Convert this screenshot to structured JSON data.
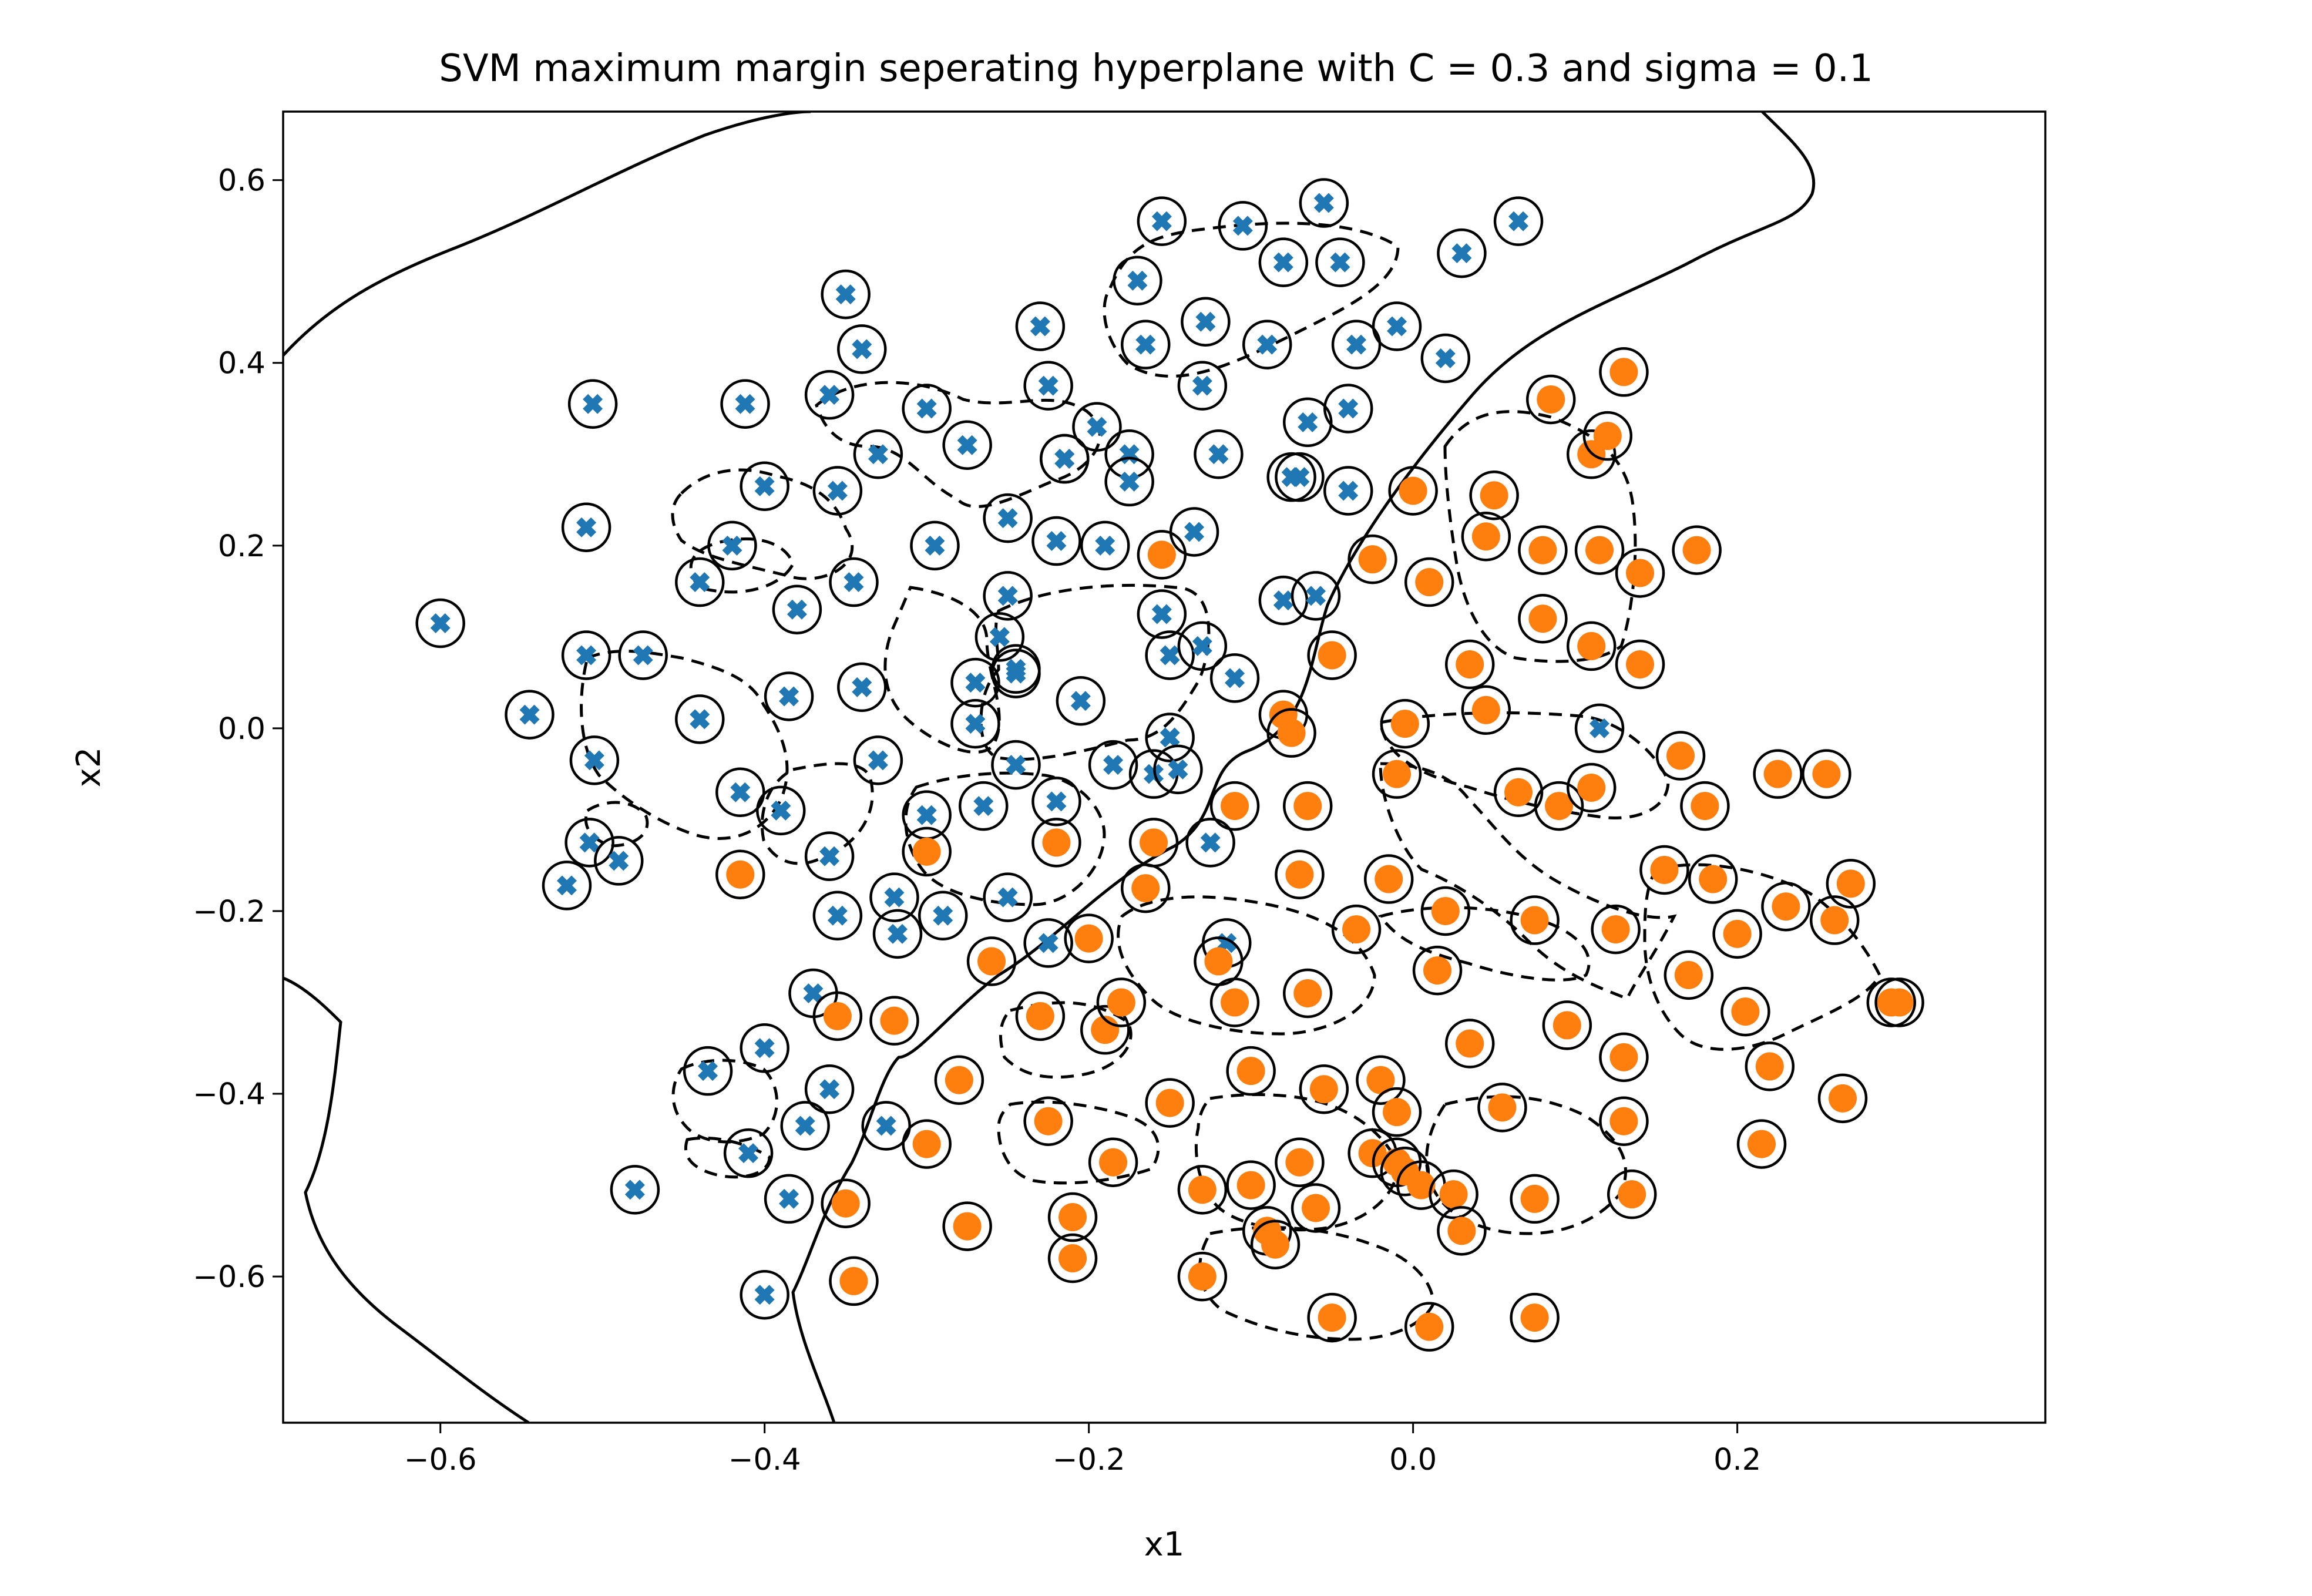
{
  "chart_data": {
    "type": "scatter",
    "title": "SVM maximum margin seperating hyperplane with C = 0.3 and sigma = 0.1",
    "xlabel": "x1",
    "ylabel": "x2",
    "xlim": [
      -0.697,
      0.39
    ],
    "ylim": [
      -0.76,
      0.675
    ],
    "xticks": [
      -0.6,
      -0.4,
      -0.2,
      0.0,
      0.2
    ],
    "xtick_labels": [
      "−0.6",
      "−0.4",
      "−0.2",
      "0.0",
      "0.2"
    ],
    "yticks": [
      -0.6,
      -0.4,
      -0.2,
      0.0,
      0.2,
      0.4,
      0.6
    ],
    "ytick_labels": [
      "−0.6",
      "−0.4",
      "−0.2",
      "0.0",
      "0.2",
      "0.4",
      "0.6"
    ],
    "grid": false,
    "legend": "none",
    "colors": {
      "class_x": "#1f77b4",
      "class_o": "#ff7f0e",
      "boundary": "#000000"
    },
    "series": [
      {
        "marker": "x",
        "color": "#1f77b4",
        "points": [
          [
            -0.6,
            0.115
          ],
          [
            -0.545,
            0.015
          ],
          [
            -0.522,
            -0.172
          ],
          [
            -0.51,
            0.08
          ],
          [
            -0.51,
            0.22
          ],
          [
            -0.506,
            0.355
          ],
          [
            -0.508,
            -0.125
          ],
          [
            -0.505,
            -0.035
          ],
          [
            -0.49,
            -0.145
          ],
          [
            -0.48,
            -0.505
          ],
          [
            -0.475,
            0.08
          ],
          [
            -0.44,
            0.01
          ],
          [
            -0.44,
            0.16
          ],
          [
            -0.435,
            -0.375
          ],
          [
            -0.42,
            0.2
          ],
          [
            -0.415,
            -0.07
          ],
          [
            -0.412,
            0.355
          ],
          [
            -0.41,
            -0.465
          ],
          [
            -0.4,
            0.265
          ],
          [
            -0.4,
            -0.35
          ],
          [
            -0.4,
            -0.62
          ],
          [
            -0.39,
            -0.09
          ],
          [
            -0.385,
            -0.515
          ],
          [
            -0.385,
            0.035
          ],
          [
            -0.38,
            0.13
          ],
          [
            -0.375,
            -0.435
          ],
          [
            -0.37,
            -0.29
          ],
          [
            -0.36,
            0.365
          ],
          [
            -0.36,
            -0.14
          ],
          [
            -0.36,
            -0.395
          ],
          [
            -0.355,
            0.26
          ],
          [
            -0.355,
            -0.205
          ],
          [
            -0.35,
            0.475
          ],
          [
            -0.345,
            0.16
          ],
          [
            -0.34,
            0.045
          ],
          [
            -0.34,
            0.415
          ],
          [
            -0.33,
            0.3
          ],
          [
            -0.33,
            -0.035
          ],
          [
            -0.325,
            -0.435
          ],
          [
            -0.32,
            -0.185
          ],
          [
            -0.318,
            -0.225
          ],
          [
            -0.3,
            0.35
          ],
          [
            -0.3,
            -0.095
          ],
          [
            -0.295,
            0.2
          ],
          [
            -0.29,
            -0.205
          ],
          [
            -0.275,
            0.31
          ],
          [
            -0.27,
            0.05
          ],
          [
            -0.27,
            0.005
          ],
          [
            -0.265,
            -0.085
          ],
          [
            -0.255,
            0.1
          ],
          [
            -0.25,
            0.23
          ],
          [
            -0.25,
            0.145
          ],
          [
            -0.25,
            -0.185
          ],
          [
            -0.245,
            0.065
          ],
          [
            -0.245,
            0.06
          ],
          [
            -0.245,
            -0.04
          ],
          [
            -0.23,
            0.44
          ],
          [
            -0.225,
            0.375
          ],
          [
            -0.22,
            0.205
          ],
          [
            -0.22,
            -0.08
          ],
          [
            -0.215,
            0.295
          ],
          [
            -0.205,
            0.03
          ],
          [
            -0.195,
            0.33
          ],
          [
            -0.19,
            0.2
          ],
          [
            -0.185,
            -0.04
          ],
          [
            -0.175,
            0.3
          ],
          [
            -0.175,
            0.27
          ],
          [
            -0.17,
            0.49
          ],
          [
            -0.165,
            0.42
          ],
          [
            -0.16,
            -0.05
          ],
          [
            -0.155,
            0.555
          ],
          [
            -0.155,
            0.125
          ],
          [
            -0.15,
            -0.01
          ],
          [
            -0.15,
            0.08
          ],
          [
            -0.145,
            -0.045
          ],
          [
            -0.135,
            0.215
          ],
          [
            -0.13,
            0.375
          ],
          [
            -0.13,
            0.09
          ],
          [
            -0.128,
            0.445
          ],
          [
            -0.125,
            -0.125
          ],
          [
            -0.12,
            0.3
          ],
          [
            -0.115,
            -0.235
          ],
          [
            -0.11,
            0.055
          ],
          [
            -0.105,
            0.55
          ],
          [
            -0.09,
            0.42
          ],
          [
            -0.08,
            0.51
          ],
          [
            -0.08,
            0.14
          ],
          [
            -0.075,
            0.275
          ],
          [
            -0.07,
            0.275
          ],
          [
            -0.065,
            0.335
          ],
          [
            -0.06,
            0.145
          ],
          [
            -0.055,
            0.575
          ],
          [
            -0.045,
            0.51
          ],
          [
            -0.04,
            0.35
          ],
          [
            -0.04,
            0.26
          ],
          [
            -0.035,
            0.42
          ],
          [
            -0.01,
            0.44
          ],
          [
            0.02,
            0.405
          ],
          [
            0.03,
            0.52
          ],
          [
            0.065,
            0.555
          ],
          [
            0.115,
            0.0
          ],
          [
            -0.225,
            -0.235
          ],
          [
            -0.215,
            0.295
          ]
        ]
      },
      {
        "marker": "o",
        "color": "#ff7f0e",
        "points": [
          [
            -0.415,
            -0.16
          ],
          [
            -0.355,
            -0.315
          ],
          [
            -0.35,
            -0.52
          ],
          [
            -0.345,
            -0.605
          ],
          [
            -0.32,
            -0.32
          ],
          [
            -0.3,
            -0.455
          ],
          [
            -0.3,
            -0.135
          ],
          [
            -0.28,
            -0.385
          ],
          [
            -0.275,
            -0.545
          ],
          [
            -0.26,
            -0.255
          ],
          [
            -0.23,
            -0.315
          ],
          [
            -0.225,
            -0.43
          ],
          [
            -0.22,
            -0.125
          ],
          [
            -0.21,
            -0.535
          ],
          [
            -0.21,
            -0.58
          ],
          [
            -0.2,
            -0.23
          ],
          [
            -0.19,
            -0.33
          ],
          [
            -0.185,
            -0.475
          ],
          [
            -0.18,
            -0.3
          ],
          [
            -0.16,
            -0.125
          ],
          [
            -0.165,
            -0.175
          ],
          [
            -0.155,
            0.19
          ],
          [
            -0.15,
            -0.41
          ],
          [
            -0.13,
            -0.505
          ],
          [
            -0.13,
            -0.6
          ],
          [
            -0.12,
            -0.255
          ],
          [
            -0.11,
            -0.3
          ],
          [
            -0.11,
            -0.085
          ],
          [
            -0.1,
            -0.5
          ],
          [
            -0.1,
            -0.375
          ],
          [
            -0.09,
            -0.55
          ],
          [
            -0.085,
            -0.565
          ],
          [
            -0.08,
            0.015
          ],
          [
            -0.075,
            -0.005
          ],
          [
            -0.07,
            -0.475
          ],
          [
            -0.07,
            -0.16
          ],
          [
            -0.065,
            -0.085
          ],
          [
            -0.065,
            -0.29
          ],
          [
            -0.06,
            -0.525
          ],
          [
            -0.055,
            -0.395
          ],
          [
            -0.05,
            -0.645
          ],
          [
            -0.05,
            0.08
          ],
          [
            -0.035,
            -0.22
          ],
          [
            -0.025,
            0.185
          ],
          [
            -0.02,
            -0.385
          ],
          [
            -0.025,
            -0.465
          ],
          [
            -0.015,
            -0.165
          ],
          [
            -0.01,
            -0.42
          ],
          [
            -0.01,
            -0.475
          ],
          [
            -0.01,
            -0.05
          ],
          [
            -0.005,
            -0.485
          ],
          [
            -0.005,
            0.005
          ],
          [
            0.0,
            0.26
          ],
          [
            0.005,
            -0.5
          ],
          [
            0.01,
            0.16
          ],
          [
            0.01,
            -0.655
          ],
          [
            0.015,
            -0.265
          ],
          [
            0.02,
            -0.2
          ],
          [
            0.025,
            -0.51
          ],
          [
            0.03,
            -0.55
          ],
          [
            0.035,
            -0.345
          ],
          [
            0.035,
            0.07
          ],
          [
            0.045,
            0.02
          ],
          [
            0.045,
            0.21
          ],
          [
            0.05,
            0.255
          ],
          [
            0.055,
            -0.415
          ],
          [
            0.065,
            -0.07
          ],
          [
            0.075,
            -0.21
          ],
          [
            0.075,
            -0.515
          ],
          [
            0.075,
            -0.645
          ],
          [
            0.085,
            0.36
          ],
          [
            0.08,
            0.195
          ],
          [
            0.08,
            0.12
          ],
          [
            0.09,
            -0.085
          ],
          [
            0.095,
            -0.325
          ],
          [
            0.11,
            0.3
          ],
          [
            0.11,
            -0.065
          ],
          [
            0.11,
            0.09
          ],
          [
            0.115,
            0.195
          ],
          [
            0.12,
            0.32
          ],
          [
            0.125,
            -0.22
          ],
          [
            0.13,
            0.39
          ],
          [
            0.13,
            -0.36
          ],
          [
            0.13,
            -0.43
          ],
          [
            0.135,
            -0.51
          ],
          [
            0.14,
            0.17
          ],
          [
            0.14,
            0.07
          ],
          [
            0.155,
            -0.155
          ],
          [
            0.165,
            -0.03
          ],
          [
            0.17,
            -0.27
          ],
          [
            0.175,
            0.195
          ],
          [
            0.18,
            -0.085
          ],
          [
            0.185,
            -0.165
          ],
          [
            0.2,
            -0.225
          ],
          [
            0.205,
            -0.31
          ],
          [
            0.215,
            -0.455
          ],
          [
            0.22,
            -0.37
          ],
          [
            0.225,
            -0.05
          ],
          [
            0.23,
            -0.195
          ],
          [
            0.255,
            -0.05
          ],
          [
            0.26,
            -0.21
          ],
          [
            0.265,
            -0.405
          ],
          [
            0.27,
            -0.17
          ],
          [
            0.295,
            -0.3
          ],
          [
            0.3,
            -0.3
          ]
        ]
      }
    ],
    "support_vectors_plain": [
      [
        -0.44,
        0.01
      ],
      [
        -0.3,
        0.35
      ],
      [
        -0.33,
        -0.035
      ],
      [
        -0.27,
        0.005
      ],
      [
        -0.25,
        0.23
      ],
      [
        -0.245,
        -0.04
      ],
      [
        -0.205,
        0.03
      ],
      [
        -0.175,
        0.3
      ],
      [
        -0.175,
        0.27
      ],
      [
        -0.185,
        0.09
      ],
      [
        -0.155,
        0.125
      ],
      [
        -0.12,
        0.3
      ],
      [
        -0.09,
        0.42
      ],
      [
        -0.08,
        0.51
      ],
      [
        -0.045,
        0.51
      ],
      [
        0.08,
        0.195
      ],
      [
        0.08,
        0.12
      ],
      [
        0.115,
        0.195
      ],
      [
        0.185,
        -0.085
      ],
      [
        0.2,
        -0.225
      ],
      [
        0.205,
        -0.31
      ],
      [
        0.23,
        -0.195
      ],
      [
        -0.19,
        -0.33
      ],
      [
        -0.1,
        -0.5
      ],
      [
        -0.02,
        -0.385
      ],
      [
        -0.025,
        -0.465
      ],
      [
        0.025,
        -0.51
      ],
      [
        -0.005,
        -0.5
      ]
    ]
  }
}
